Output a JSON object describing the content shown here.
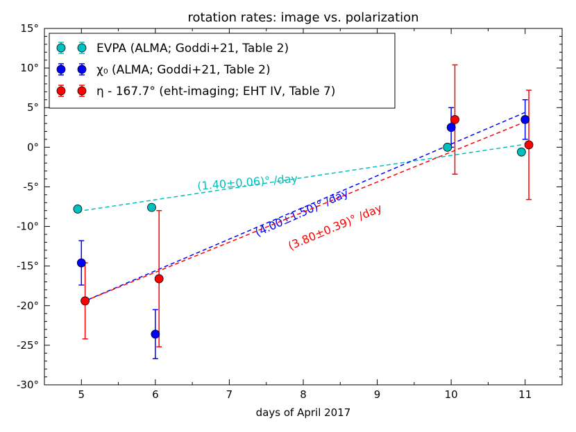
{
  "chart_data": {
    "type": "scatter",
    "title": "rotation rates: image vs. polarization",
    "xlabel": "days of April 2017",
    "ylabel": "",
    "xlim": [
      4.5,
      11.5
    ],
    "ylim": [
      -30,
      15
    ],
    "xticks": [
      "5",
      "6",
      "7",
      "8",
      "9",
      "10",
      "11"
    ],
    "yticks": [
      "15°",
      "10°",
      "5°",
      "0°",
      "-5°",
      "-10°",
      "-15°",
      "-20°",
      "-25°",
      "-30°"
    ],
    "grid": false,
    "legend_position": "top-left",
    "series": [
      {
        "name": "EVPA (ALMA; Goddi+21, Table 2)",
        "legend_label": "EVPA (ALMA; Goddi+21, Table 2)",
        "color": "#00bfbf",
        "x": [
          4.95,
          5.95,
          9.95,
          10.95
        ],
        "y": [
          -7.8,
          -7.6,
          0.0,
          -0.6
        ],
        "yerr": [
          0.3,
          0.3,
          0.3,
          0.3
        ],
        "fit": {
          "label": "(1.40±0.06)° /day",
          "start": [
            4.95,
            -8.1
          ],
          "end": [
            10.95,
            0.3
          ],
          "angle": -4.5
        }
      },
      {
        "name": "χ0 (ALMA; Goddi+21, Table 2)",
        "legend_label": "χ₀ (ALMA; Goddi+21, Table 2)",
        "color": "#0000ff",
        "x": [
          5.0,
          6.0,
          10.0,
          11.0
        ],
        "y": [
          -14.6,
          -23.6,
          2.5,
          3.5
        ],
        "yerr": [
          2.8,
          3.1,
          2.5,
          2.5
        ],
        "fit": {
          "label": "(4.00±1.50)° /day",
          "start": [
            5.0,
            -19.6
          ],
          "end": [
            11.0,
            4.4
          ],
          "angle": -24
        }
      },
      {
        "name": "η - 167.7° (eht-imaging; EHT IV, Table 7)",
        "legend_label": "η - 167.7° (eht-imaging; EHT IV, Table 7)",
        "color": "#ff0000",
        "x": [
          5.05,
          6.05,
          10.05,
          11.05
        ],
        "y": [
          -19.4,
          -16.6,
          3.5,
          0.3
        ],
        "yerr": [
          4.8,
          8.6,
          6.9,
          6.9
        ],
        "fit": {
          "label": "(3.80±0.39)° /day",
          "start": [
            5.05,
            -19.4
          ],
          "end": [
            11.05,
            3.4
          ],
          "angle": -23
        }
      }
    ]
  }
}
